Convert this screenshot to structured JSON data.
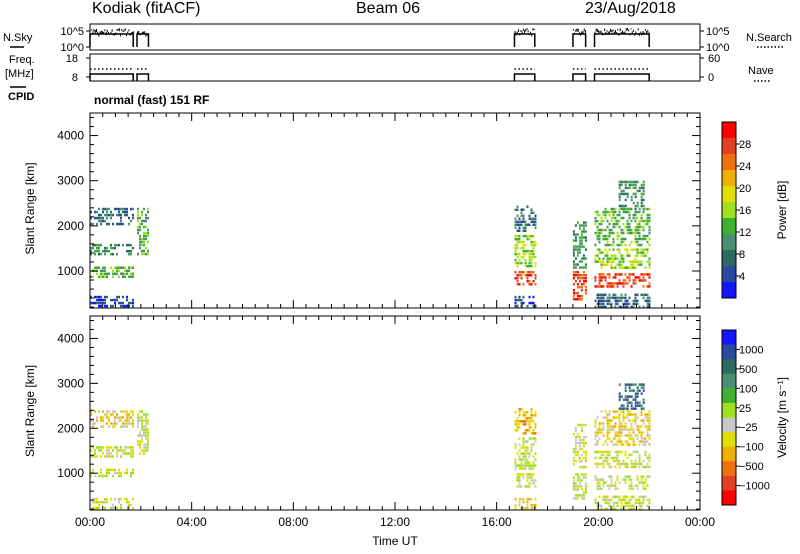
{
  "header": {
    "station": "Kodiak (fitACF)",
    "beam": "Beam 06",
    "date": "23/Aug/2018"
  },
  "panel_labels": {
    "nsky": "N.Sky",
    "nsearch": "N.Search",
    "freq": "Freq.",
    "freq_unit": "[MHz]",
    "nave": "Nave",
    "cpid": "CPID",
    "cpid_value": "normal (fast) 151 RF"
  },
  "chart_data": [
    {
      "type": "line",
      "name": "noise",
      "ytick_labels_left": [
        "10^5",
        "10^0"
      ],
      "ytick_labels_right": [
        "10^5",
        "10^0"
      ],
      "active_intervals_ut": [
        [
          0.0,
          1.7
        ],
        [
          1.85,
          2.3
        ],
        [
          16.7,
          17.5
        ],
        [
          19.0,
          19.5
        ],
        [
          19.85,
          22.0
        ]
      ]
    },
    {
      "type": "line",
      "name": "frequency",
      "ytick_labels_left": [
        "18",
        "8"
      ],
      "ytick_labels_right": [
        "60",
        "0"
      ],
      "freq_mhz": 11,
      "nave": 38,
      "active_intervals_ut": [
        [
          0.0,
          1.7
        ],
        [
          1.85,
          2.3
        ],
        [
          16.7,
          17.5
        ],
        [
          19.0,
          19.5
        ],
        [
          19.85,
          22.0
        ]
      ]
    },
    {
      "type": "heatmap",
      "name": "power",
      "ylabel": "Slant Range [km]",
      "yticks": [
        "4000",
        "3000",
        "2000",
        "1000"
      ],
      "ylim": [
        180,
        4500
      ],
      "xlim": [
        0,
        24
      ],
      "colorbar_label": "Power [dB]",
      "colorbar_ticks": [
        "28",
        "24",
        "20",
        "16",
        "12",
        "8",
        "4"
      ],
      "colorbar_colors": [
        "#ff0000",
        "#e04020",
        "#f07010",
        "#f0b000",
        "#e0e000",
        "#a0e020",
        "#40b030",
        "#4a9070",
        "#2a6a60",
        "#2a4aa0",
        "#1414ff"
      ],
      "scatter_regions": [
        {
          "t": [
            0.0,
            1.7
          ],
          "r": [
            900,
            1100
          ],
          "level": 6
        },
        {
          "t": [
            0.0,
            1.7
          ],
          "r": [
            1350,
            1600
          ],
          "level": 7
        },
        {
          "t": [
            0.0,
            1.7
          ],
          "r": [
            2050,
            2400
          ],
          "level": 8
        },
        {
          "t": [
            0.0,
            1.7
          ],
          "r": [
            200,
            450
          ],
          "level": 9
        },
        {
          "t": [
            1.85,
            2.3
          ],
          "r": [
            1400,
            2400
          ],
          "level": 6
        },
        {
          "t": [
            16.7,
            17.5
          ],
          "r": [
            700,
            1000
          ],
          "level": 1
        },
        {
          "t": [
            16.7,
            17.5
          ],
          "r": [
            1100,
            1800
          ],
          "level": 5
        },
        {
          "t": [
            16.7,
            17.5
          ],
          "r": [
            1900,
            2450
          ],
          "level": 8
        },
        {
          "t": [
            16.7,
            17.5
          ],
          "r": [
            200,
            450
          ],
          "level": 9
        },
        {
          "t": [
            19.0,
            19.5
          ],
          "r": [
            400,
            1000
          ],
          "level": 1
        },
        {
          "t": [
            19.0,
            19.5
          ],
          "r": [
            1100,
            2100
          ],
          "level": 7
        },
        {
          "t": [
            19.85,
            22.0
          ],
          "r": [
            650,
            950
          ],
          "level": 1
        },
        {
          "t": [
            19.85,
            22.0
          ],
          "r": [
            1100,
            1500
          ],
          "level": 5
        },
        {
          "t": [
            19.85,
            22.0
          ],
          "r": [
            1600,
            2400
          ],
          "level": 6
        },
        {
          "t": [
            19.85,
            22.0
          ],
          "r": [
            200,
            500
          ],
          "level": 8
        },
        {
          "t": [
            20.8,
            21.8
          ],
          "r": [
            2400,
            3000
          ],
          "level": 7
        }
      ]
    },
    {
      "type": "heatmap",
      "name": "velocity",
      "ylabel": "Slant Range [km]",
      "yticks": [
        "4000",
        "3000",
        "2000",
        "1000"
      ],
      "ylim": [
        180,
        4500
      ],
      "xlim": [
        0,
        24
      ],
      "xlabel": "Time UT",
      "xtick_labels": [
        "00:00",
        "04:00",
        "08:00",
        "12:00",
        "16:00",
        "20:00",
        "00:00"
      ],
      "colorbar_label": "Velocity [m s⁻¹]",
      "colorbar_ticks": [
        "1000",
        "500",
        "100",
        "25",
        "−25",
        "−100",
        "−500",
        "−1000"
      ],
      "colorbar_colors": [
        "#1414ff",
        "#2a4aa0",
        "#2a6a60",
        "#4a9070",
        "#40b030",
        "#a0e020",
        "#c8c8c8",
        "#e0e000",
        "#f0b000",
        "#f07010",
        "#e04020",
        "#ff0000"
      ],
      "scatter_regions": [
        {
          "t": [
            0.0,
            1.7
          ],
          "r": [
            900,
            1100
          ],
          "level": 6
        },
        {
          "t": [
            0.0,
            1.7
          ],
          "r": [
            1350,
            1600
          ],
          "level": 6
        },
        {
          "t": [
            0.0,
            1.7
          ],
          "r": [
            2050,
            2400
          ],
          "level": 7
        },
        {
          "t": [
            0.0,
            1.7
          ],
          "r": [
            200,
            450
          ],
          "level": 6
        },
        {
          "t": [
            1.85,
            2.3
          ],
          "r": [
            1400,
            2400
          ],
          "level": 6
        },
        {
          "t": [
            16.7,
            17.5
          ],
          "r": [
            700,
            1000
          ],
          "level": 6
        },
        {
          "t": [
            16.7,
            17.5
          ],
          "r": [
            1100,
            1800
          ],
          "level": 6
        },
        {
          "t": [
            16.7,
            17.5
          ],
          "r": [
            1900,
            2450
          ],
          "level": 8
        },
        {
          "t": [
            16.7,
            17.5
          ],
          "r": [
            200,
            450
          ],
          "level": 7
        },
        {
          "t": [
            19.0,
            19.5
          ],
          "r": [
            400,
            1000
          ],
          "level": 6
        },
        {
          "t": [
            19.0,
            19.5
          ],
          "r": [
            1100,
            2100
          ],
          "level": 6
        },
        {
          "t": [
            19.85,
            22.0
          ],
          "r": [
            650,
            950
          ],
          "level": 6
        },
        {
          "t": [
            19.85,
            22.0
          ],
          "r": [
            1100,
            1500
          ],
          "level": 6
        },
        {
          "t": [
            19.85,
            22.0
          ],
          "r": [
            1600,
            2400
          ],
          "level": 7
        },
        {
          "t": [
            19.85,
            22.0
          ],
          "r": [
            200,
            500
          ],
          "level": 6
        },
        {
          "t": [
            20.8,
            21.8
          ],
          "r": [
            2400,
            3000
          ],
          "level": 2
        }
      ]
    }
  ]
}
